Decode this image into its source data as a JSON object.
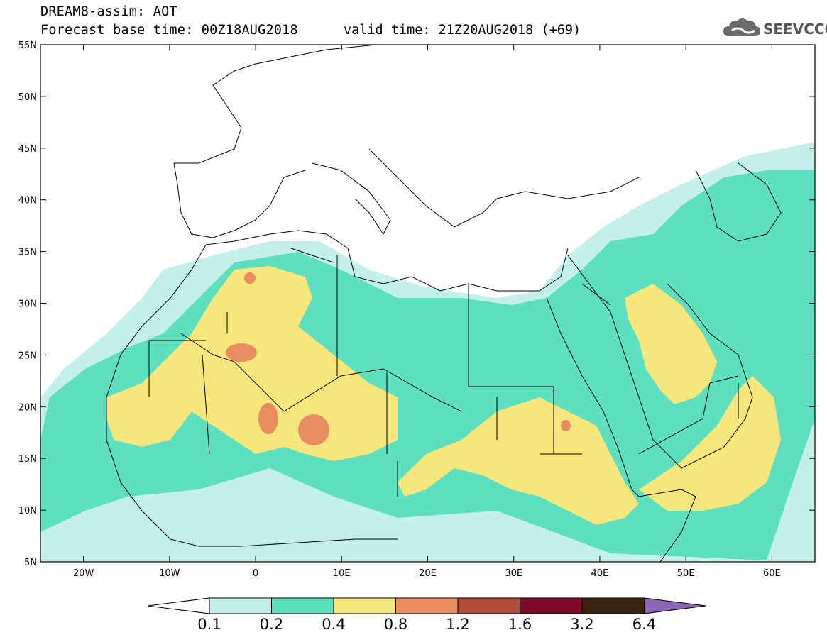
{
  "header": {
    "title": "DREAM8-assim: AOT",
    "forecast_base": "Forecast base time: 00Z18AUG2018",
    "valid_time": "valid time: 21Z20AUG2018 (+69)",
    "logo": "SEEVCCC",
    "logo_icon": "cloud-logo-icon"
  },
  "map": {
    "lat_labels": [
      "55N",
      "50N",
      "45N",
      "40N",
      "35N",
      "30N",
      "25N",
      "20N",
      "15N",
      "10N",
      "5N"
    ],
    "lat_values": [
      55,
      50,
      45,
      40,
      35,
      30,
      25,
      20,
      15,
      10,
      5
    ],
    "lon_labels": [
      "20W",
      "10W",
      "0",
      "10E",
      "20E",
      "30E",
      "40E",
      "50E",
      "60E"
    ],
    "lon_values": [
      -20,
      -10,
      0,
      10,
      20,
      30,
      40,
      50,
      60
    ],
    "extent": {
      "lon_min": -25,
      "lon_max": 65,
      "lat_min": 5,
      "lat_max": 55
    }
  },
  "colorbar": {
    "labels": [
      "0.1",
      "0.2",
      "0.4",
      "0.8",
      "1.2",
      "1.6",
      "3.2",
      "6.4"
    ],
    "colors": [
      "#c3f0ea",
      "#5ddfc0",
      "#f6e67c",
      "#e88c62",
      "#b24c3c",
      "#7e0a2a",
      "#3b2414",
      "#8c66b2"
    ],
    "under_color": "#ffffff"
  },
  "field_colors": {
    "c01": "#c3f0ea",
    "c02": "#5ddfc0",
    "c04": "#f6e67c",
    "c08": "#e88c62"
  }
}
